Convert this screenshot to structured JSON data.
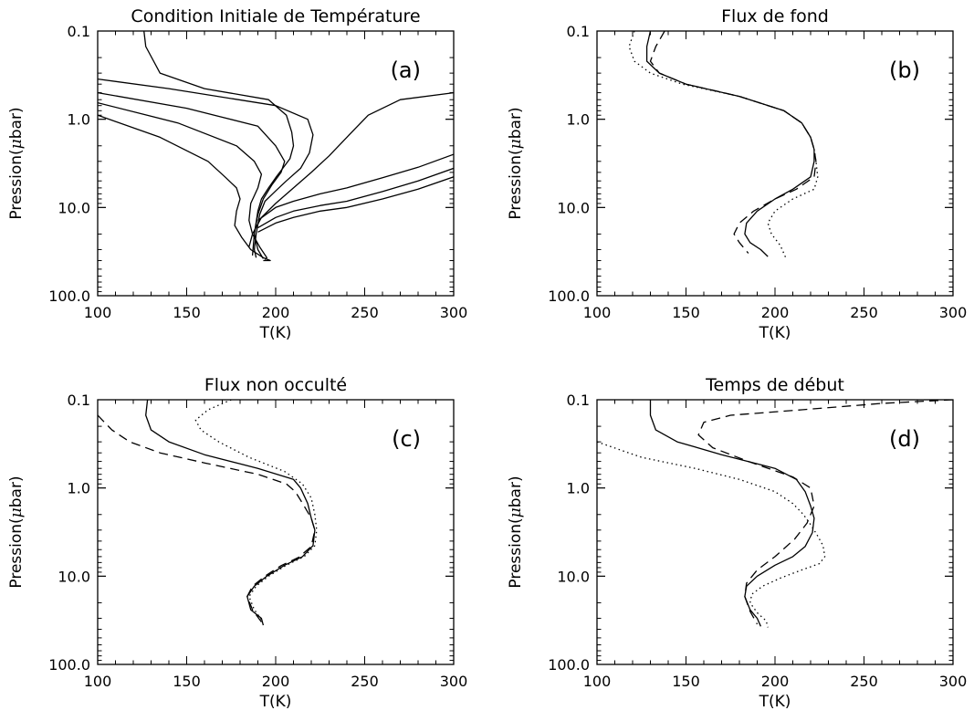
{
  "chart_data": [
    {
      "type": "line",
      "panel_tag": "(a)",
      "title": "Condition Initiale de Température",
      "xlabel": "T(K)",
      "ylabel_prefix": "Pression(",
      "ylabel_mu": "μ",
      "ylabel_suffix": "bar)",
      "xlim": [
        100,
        300
      ],
      "ylim": [
        100.0,
        0.1
      ],
      "yscale": "log",
      "xticks": [
        "100",
        "150",
        "200",
        "250",
        "300"
      ],
      "yticks": [
        "0.1",
        "1.0",
        "10.0",
        "100.0"
      ],
      "series": [
        {
          "style": "solid",
          "x": [
            126,
            127,
            135,
            160,
            196,
            206,
            209,
            210,
            208,
            204,
            200,
            196,
            192,
            190,
            188,
            187
          ],
          "y": [
            0.1,
            0.15,
            0.3,
            0.45,
            0.6,
            0.9,
            1.4,
            2.0,
            2.8,
            3.6,
            4.6,
            6.0,
            8.0,
            11.0,
            20.0,
            35.0
          ]
        },
        {
          "style": "solid",
          "x": [
            100,
            140,
            200,
            218,
            221,
            219,
            214,
            206,
            200,
            194,
            191,
            189,
            188,
            189
          ],
          "y": [
            0.35,
            0.45,
            0.7,
            1.0,
            1.5,
            2.4,
            3.6,
            5.0,
            6.5,
            8.5,
            12.0,
            20.0,
            30.0,
            37.0
          ]
        },
        {
          "style": "solid",
          "x": [
            100,
            150,
            190,
            200,
            205,
            203,
            198,
            193,
            190,
            188,
            190,
            193
          ],
          "y": [
            0.5,
            0.75,
            1.2,
            2.0,
            3.0,
            4.0,
            5.5,
            8.0,
            12.0,
            20.0,
            30.0,
            38.0
          ]
        },
        {
          "style": "solid",
          "x": [
            100,
            145,
            178,
            188,
            192,
            190,
            186,
            185,
            187,
            191,
            195,
            194
          ],
          "y": [
            0.65,
            1.1,
            2.0,
            3.0,
            4.2,
            6.0,
            9.0,
            14.0,
            20.0,
            28.0,
            37.0,
            39.0
          ]
        },
        {
          "style": "solid",
          "x": [
            100,
            135,
            162,
            172,
            178,
            180,
            178,
            177,
            181,
            186,
            193,
            197,
            193
          ],
          "y": [
            0.9,
            1.6,
            3.0,
            4.6,
            6.0,
            8.0,
            11.0,
            16.0,
            22.0,
            30.0,
            37.0,
            40.0,
            40.0
          ]
        },
        {
          "style": "solid",
          "x": [
            300,
            270,
            252,
            240,
            230,
            220,
            210,
            200,
            192,
            187,
            185
          ],
          "y": [
            0.5,
            0.6,
            0.9,
            1.6,
            2.6,
            4.0,
            6.0,
            9.0,
            13.0,
            20.0,
            28.0
          ]
        },
        {
          "style": "solid",
          "x": [
            300,
            280,
            260,
            240,
            225,
            210,
            200,
            190
          ],
          "y": [
            2.5,
            3.5,
            4.6,
            6.0,
            7.0,
            8.5,
            10.0,
            14.0
          ]
        },
        {
          "style": "solid",
          "x": [
            300,
            280,
            260,
            240,
            225,
            210,
            200,
            190
          ],
          "y": [
            3.6,
            5.0,
            6.6,
            8.5,
            9.5,
            11.0,
            13.0,
            17.0
          ]
        },
        {
          "style": "solid",
          "x": [
            300,
            280,
            260,
            240,
            225,
            210,
            200,
            190
          ],
          "y": [
            4.5,
            6.2,
            8.0,
            10.0,
            11.0,
            13.0,
            15.0,
            19.0
          ]
        }
      ]
    },
    {
      "type": "line",
      "panel_tag": "(b)",
      "title": "Flux de fond",
      "xlabel": "T(K)",
      "ylabel_prefix": "Pression(",
      "ylabel_mu": "μ",
      "ylabel_suffix": "bar)",
      "xlim": [
        100,
        300
      ],
      "ylim": [
        100.0,
        0.1
      ],
      "yscale": "log",
      "xticks": [
        "100",
        "150",
        "200",
        "250",
        "300"
      ],
      "yticks": [
        "0.1",
        "1.0",
        "10.0",
        "100.0"
      ],
      "series": [
        {
          "style": "solid",
          "x": [
            130,
            128,
            128,
            135,
            150,
            180,
            205,
            215,
            220,
            222,
            222,
            220,
            210,
            200,
            190,
            184,
            183,
            186,
            192,
            196
          ],
          "y": [
            0.1,
            0.15,
            0.22,
            0.3,
            0.4,
            0.55,
            0.8,
            1.1,
            1.6,
            2.2,
            3.0,
            4.5,
            6.2,
            8.0,
            11.0,
            15.0,
            20.0,
            25.0,
            30.0,
            36.0
          ]
        },
        {
          "style": "dashed",
          "x": [
            138,
            133,
            130,
            135,
            150,
            180,
            205,
            215,
            220,
            222,
            223,
            222,
            212,
            200,
            188,
            180,
            177,
            180,
            185
          ],
          "y": [
            0.1,
            0.15,
            0.22,
            0.3,
            0.4,
            0.55,
            0.8,
            1.1,
            1.6,
            2.2,
            3.0,
            4.5,
            6.2,
            8.0,
            11.0,
            15.0,
            20.0,
            25.0,
            33.0
          ]
        },
        {
          "style": "dotted",
          "x": [
            121,
            118,
            121,
            130,
            148,
            180,
            205,
            215,
            220,
            222,
            223,
            224,
            222,
            210,
            200,
            196,
            198,
            203,
            206
          ],
          "y": [
            0.1,
            0.15,
            0.22,
            0.3,
            0.4,
            0.55,
            0.8,
            1.1,
            1.6,
            2.2,
            3.0,
            4.5,
            6.2,
            8.0,
            11.0,
            15.0,
            20.0,
            27.0,
            37.0
          ]
        }
      ]
    },
    {
      "type": "line",
      "panel_tag": "(c)",
      "title": "Flux non occulté",
      "xlabel": "T(K)",
      "ylabel_prefix": "Pression(",
      "ylabel_mu": "μ",
      "ylabel_suffix": "bar)",
      "xlim": [
        100,
        300
      ],
      "ylim": [
        100.0,
        0.1
      ],
      "yscale": "log",
      "xticks": [
        "100",
        "150",
        "200",
        "250",
        "300"
      ],
      "yticks": [
        "0.1",
        "1.0",
        "10.0",
        "100.0"
      ],
      "series": [
        {
          "style": "solid",
          "x": [
            128,
            127,
            130,
            140,
            160,
            190,
            210,
            214,
            218,
            220,
            222,
            221,
            215,
            205,
            195,
            188,
            184,
            186,
            192,
            193
          ],
          "y": [
            0.1,
            0.15,
            0.22,
            0.3,
            0.42,
            0.6,
            0.8,
            1.0,
            1.5,
            2.2,
            3.0,
            4.5,
            6.0,
            7.5,
            10.0,
            13.0,
            17.0,
            24.0,
            30.0,
            36.0
          ]
        },
        {
          "style": "dashed",
          "x": [
            100,
            108,
            118,
            135,
            160,
            190,
            206,
            211,
            216,
            220,
            222,
            220,
            213,
            203,
            194,
            187,
            184,
            187,
            192
          ],
          "y": [
            0.15,
            0.22,
            0.3,
            0.4,
            0.52,
            0.7,
            0.9,
            1.1,
            1.6,
            2.2,
            3.0,
            4.6,
            6.1,
            7.6,
            10.0,
            13.0,
            17.0,
            24.0,
            33.0
          ]
        },
        {
          "style": "dotted",
          "x": [
            175,
            162,
            155,
            158,
            168,
            185,
            205,
            215,
            220,
            222,
            223,
            222,
            216,
            206,
            196,
            189,
            185,
            188,
            193
          ],
          "y": [
            0.1,
            0.13,
            0.17,
            0.22,
            0.3,
            0.45,
            0.65,
            0.9,
            1.3,
            2.0,
            3.0,
            4.5,
            6.0,
            7.5,
            10.0,
            13.0,
            17.0,
            24.0,
            33.0
          ]
        }
      ]
    },
    {
      "type": "line",
      "panel_tag": "(d)",
      "title": "Temps de début",
      "xlabel": "T(K)",
      "ylabel_prefix": "Pression(",
      "ylabel_mu": "μ",
      "ylabel_suffix": "bar)",
      "xlim": [
        100,
        300
      ],
      "ylim": [
        100.0,
        0.1
      ],
      "yscale": "log",
      "xticks": [
        "100",
        "150",
        "200",
        "250",
        "300"
      ],
      "yticks": [
        "0.1",
        "1.0",
        "10.0",
        "100.0"
      ],
      "series": [
        {
          "style": "solid",
          "x": [
            130,
            130,
            133,
            145,
            170,
            200,
            212,
            217,
            220,
            222,
            221,
            217,
            210,
            200,
            190,
            184,
            183,
            186,
            190,
            192
          ],
          "y": [
            0.1,
            0.15,
            0.22,
            0.3,
            0.42,
            0.6,
            0.8,
            1.1,
            1.6,
            2.2,
            3.2,
            4.6,
            6.0,
            7.5,
            10.0,
            13.0,
            17.0,
            24.0,
            30.0,
            37.0
          ]
        },
        {
          "style": "dashed",
          "x": [
            300,
            260,
            215,
            175,
            160,
            157,
            165,
            185,
            210,
            220,
            222,
            218,
            211,
            200,
            190,
            184,
            183,
            186,
            190
          ],
          "y": [
            0.1,
            0.11,
            0.13,
            0.15,
            0.18,
            0.25,
            0.35,
            0.5,
            0.75,
            1.0,
            1.6,
            2.5,
            3.8,
            6.0,
            8.5,
            12.0,
            17.0,
            25.0,
            35.0
          ]
        },
        {
          "style": "dotted",
          "x": [
            100,
            125,
            155,
            180,
            200,
            210,
            216,
            220,
            224,
            227,
            228,
            225,
            215,
            203,
            193,
            187,
            186,
            190,
            195,
            196
          ],
          "y": [
            0.3,
            0.45,
            0.6,
            0.8,
            1.1,
            1.5,
            2.0,
            2.6,
            3.5,
            4.5,
            6.0,
            7.2,
            8.5,
            10.5,
            13.0,
            16.0,
            20.0,
            26.0,
            32.0,
            38.0
          ]
        }
      ]
    }
  ]
}
